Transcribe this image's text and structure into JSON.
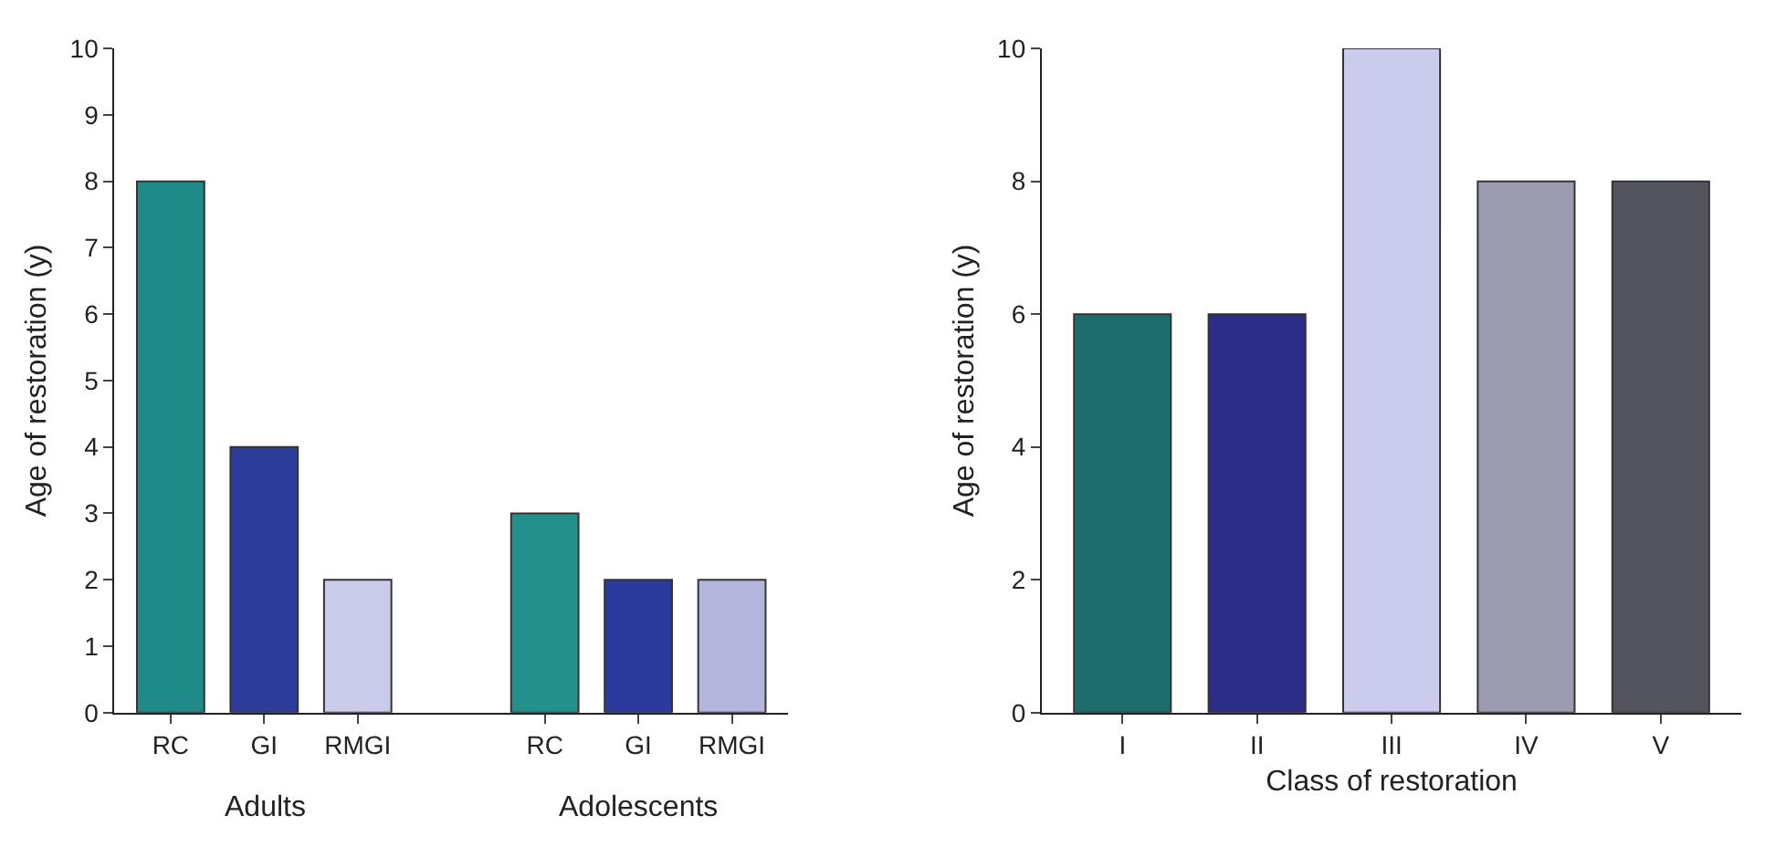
{
  "chart_data": [
    {
      "type": "bar",
      "ylabel": "Age of restoration (y)",
      "categories": [
        "RC",
        "GI",
        "RMGI",
        null,
        "RC",
        "GI",
        "RMGI"
      ],
      "values": [
        8,
        4,
        2,
        null,
        3,
        2,
        2
      ],
      "colors": [
        "#1f8a88",
        "#2e3c9c",
        "#cacbea",
        "#ffffff",
        "#24908c",
        "#2c3a9e",
        "#b4b6de"
      ],
      "ylim": [
        0,
        10
      ],
      "yticks": [
        0,
        1,
        2,
        3,
        4,
        5,
        6,
        7,
        8,
        9,
        10
      ],
      "annotations": [
        "Adults",
        "Adolescents"
      ]
    },
    {
      "type": "bar",
      "ylabel": "Age of restoration (y)",
      "xlabel": "Class of restoration",
      "categories": [
        "I",
        "II",
        "III",
        "IV",
        "V"
      ],
      "values": [
        6,
        6,
        10,
        8,
        8
      ],
      "colors": [
        "#1d6d6c",
        "#2b2d86",
        "#cbcbee",
        "#9c9cb0",
        "#54545f"
      ],
      "ylim": [
        0,
        10
      ],
      "yticks": [
        0,
        2,
        4,
        6,
        8,
        10
      ]
    }
  ]
}
